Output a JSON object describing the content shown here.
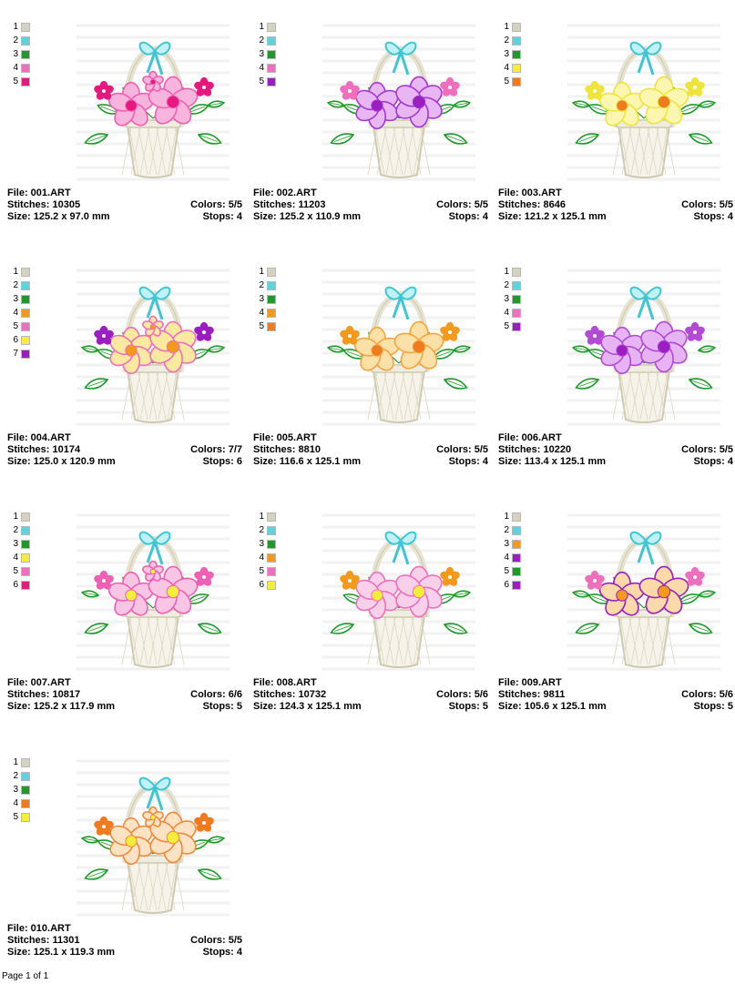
{
  "labels": {
    "file": "File: ",
    "stitches": "Stitches: ",
    "colors": "Colors: ",
    "size": "Size: ",
    "stops": "Stops: "
  },
  "designs": [
    {
      "file": "001.ART",
      "stitches": "10305",
      "colors": "5/5",
      "size": "125.2 x 97.0 mm",
      "stops": "4",
      "swatches": [
        "#d6d2c0",
        "#5fd3dc",
        "#1f9a2a",
        "#ef6fbd",
        "#e6197f"
      ],
      "theme": {
        "petal": "#ef5fb3",
        "petal2": "#f7b4dc",
        "center": "#e6197f",
        "small": "#e6197f",
        "leaf": "#1f9a2a"
      }
    },
    {
      "file": "002.ART",
      "stitches": "11203",
      "colors": "5/5",
      "size": "125.2 x 110.9 mm",
      "stops": "4",
      "swatches": [
        "#d6d2c0",
        "#5fd3dc",
        "#1f9a2a",
        "#ef6fbd",
        "#9a1ec0"
      ],
      "theme": {
        "petal": "#a33ad0",
        "petal2": "#e8b6f3",
        "center": "#9a1ec0",
        "small": "#ef6fbd",
        "leaf": "#1f9a2a"
      }
    },
    {
      "file": "003.ART",
      "stitches": "8646",
      "colors": "5/5",
      "size": "121.2 x 125.1 mm",
      "stops": "4",
      "swatches": [
        "#d6d2c0",
        "#5fd3dc",
        "#1f9a2a",
        "#f4ee3a",
        "#f07a1e"
      ],
      "theme": {
        "petal": "#efe43a",
        "petal2": "#fbf6b0",
        "center": "#f07a1e",
        "small": "#efe43a",
        "leaf": "#1f9a2a"
      }
    },
    {
      "file": "004.ART",
      "stitches": "10174",
      "colors": "7/7",
      "size": "125.0 x 120.9 mm",
      "stops": "6",
      "swatches": [
        "#d6d2c0",
        "#5fd3dc",
        "#1f9a2a",
        "#f39a1c",
        "#ef6fbd",
        "#f4ee3a",
        "#9a1ec0"
      ],
      "theme": {
        "petal": "#ef6fbd",
        "petal2": "#fbe9a0",
        "center": "#f39a1c",
        "small": "#9a1ec0",
        "leaf": "#1f9a2a"
      }
    },
    {
      "file": "005.ART",
      "stitches": "8810",
      "colors": "5/5",
      "size": "116.6 x 125.1 mm",
      "stops": "4",
      "swatches": [
        "#d6d2c0",
        "#5fd3dc",
        "#1f9a2a",
        "#f39a1c",
        "#f07a1e"
      ],
      "theme": {
        "petal": "#f3a640",
        "petal2": "#fbe0a8",
        "center": "#f07a1e",
        "small": "#f39a1c",
        "leaf": "#1f9a2a"
      }
    },
    {
      "file": "006.ART",
      "stitches": "10220",
      "colors": "5/5",
      "size": "113.4 x 125.1 mm",
      "stops": "4",
      "swatches": [
        "#d6d2c0",
        "#5fd3dc",
        "#1f9a2a",
        "#ef6fbd",
        "#9a1ec0"
      ],
      "theme": {
        "petal": "#b24ad6",
        "petal2": "#e6b4f2",
        "center": "#9a1ec0",
        "small": "#b24ad6",
        "leaf": "#1f9a2a"
      }
    },
    {
      "file": "007.ART",
      "stitches": "10817",
      "colors": "6/6",
      "size": "125.2 x 117.9 mm",
      "stops": "5",
      "swatches": [
        "#d6d2c0",
        "#5fd3dc",
        "#1f9a2a",
        "#f4ee3a",
        "#ef6fbd",
        "#e6197f"
      ],
      "theme": {
        "petal": "#ef5fb3",
        "petal2": "#f9c5e4",
        "center": "#f4ee3a",
        "small": "#ef5fb3",
        "leaf": "#1f9a2a"
      }
    },
    {
      "file": "008.ART",
      "stitches": "10732",
      "colors": "5/6",
      "size": "124.3 x 125.1 mm",
      "stops": "5",
      "swatches": [
        "#d6d2c0",
        "#5fd3dc",
        "#1f9a2a",
        "#f39a1c",
        "#ef6fbd",
        "#f4ee3a"
      ],
      "theme": {
        "petal": "#ef6fbd",
        "petal2": "#f9d0ea",
        "center": "#f4ee3a",
        "small": "#f39a1c",
        "leaf": "#1f9a2a"
      }
    },
    {
      "file": "009.ART",
      "stitches": "9811",
      "colors": "5/6",
      "size": "105.6 x 125.1 mm",
      "stops": "5",
      "swatches": [
        "#d6d2c0",
        "#5fd3dc",
        "#f39a1c",
        "#9a1ec0",
        "#1f9a2a",
        "#9a1ec0"
      ],
      "theme": {
        "petal": "#9a1ec0",
        "petal2": "#fbd9a8",
        "center": "#f39a1c",
        "small": "#ef6fbd",
        "leaf": "#1f9a2a"
      }
    },
    {
      "file": "010.ART",
      "stitches": "11301",
      "colors": "5/5",
      "size": "125.1 x 119.3 mm",
      "stops": "4",
      "swatches": [
        "#d6d2c0",
        "#5fd3dc",
        "#1f9a2a",
        "#f07a1e",
        "#f4ee3a"
      ],
      "theme": {
        "petal": "#f08a3c",
        "petal2": "#fde2c4",
        "center": "#f4ee3a",
        "small": "#f07a1e",
        "leaf": "#1f9a2a"
      }
    }
  ],
  "footer": "Page 1 of 1"
}
